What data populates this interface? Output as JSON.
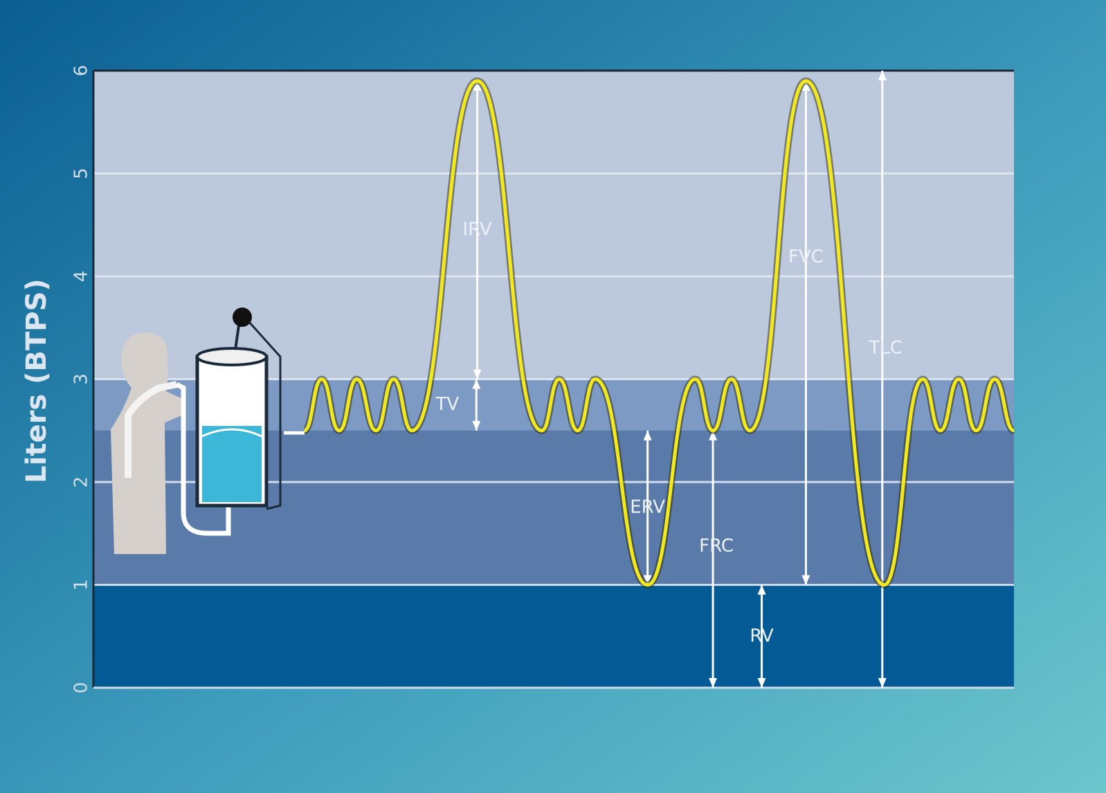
{
  "chart_data": {
    "type": "line",
    "ylabel": "Liters (BTPS)",
    "ylim": [
      0,
      6
    ],
    "yticks": [
      0,
      1,
      2,
      3,
      4,
      5,
      6
    ],
    "xlim": [
      0,
      100
    ],
    "grid": true,
    "regions": [
      {
        "range": [
          3,
          6
        ],
        "color": "#bcc8dc"
      },
      {
        "range": [
          2.5,
          3
        ],
        "color": "#7d9ac4"
      },
      {
        "range": [
          1,
          2.5
        ],
        "color": "#5a7aaa"
      },
      {
        "range": [
          0,
          1
        ],
        "color": "#045a94"
      }
    ],
    "series": [
      {
        "color": "#f2e81c",
        "x": [
          22.9,
          24.8,
          26.7,
          28.6,
          30.7,
          32.6,
          34.6,
          41.7,
          48.7,
          50.6,
          52.6,
          54.5,
          60.2,
          65.4,
          67.3,
          69.3,
          71.3,
          77.4,
          85.9,
          90.1,
          92.0,
          94.0,
          95.9,
          97.9,
          100
        ],
        "values": [
          2.5,
          3,
          2.5,
          3,
          2.5,
          3,
          2.5,
          5.9,
          2.5,
          3,
          2.5,
          3,
          1.0,
          3,
          2.5,
          3,
          2.5,
          5.9,
          1.0,
          3,
          2.5,
          3,
          2.5,
          3,
          2.5
        ]
      }
    ],
    "annotations": [
      {
        "text": "IRV",
        "x": 41.7,
        "range": [
          3,
          5.9
        ]
      },
      {
        "text": "TV",
        "x": 41.6,
        "range": [
          2.5,
          3
        ]
      },
      {
        "text": "ERV",
        "x": 60.2,
        "range": [
          1,
          2.5
        ]
      },
      {
        "text": "FRC",
        "x": 67.3,
        "range": [
          0,
          2.5
        ]
      },
      {
        "text": "RV",
        "x": 72.6,
        "range": [
          0,
          1
        ]
      },
      {
        "text": "FVC",
        "x": 77.4,
        "range": [
          1,
          5.9
        ]
      },
      {
        "text": "TLC",
        "x": 85.7,
        "range": [
          0,
          6
        ]
      }
    ]
  }
}
